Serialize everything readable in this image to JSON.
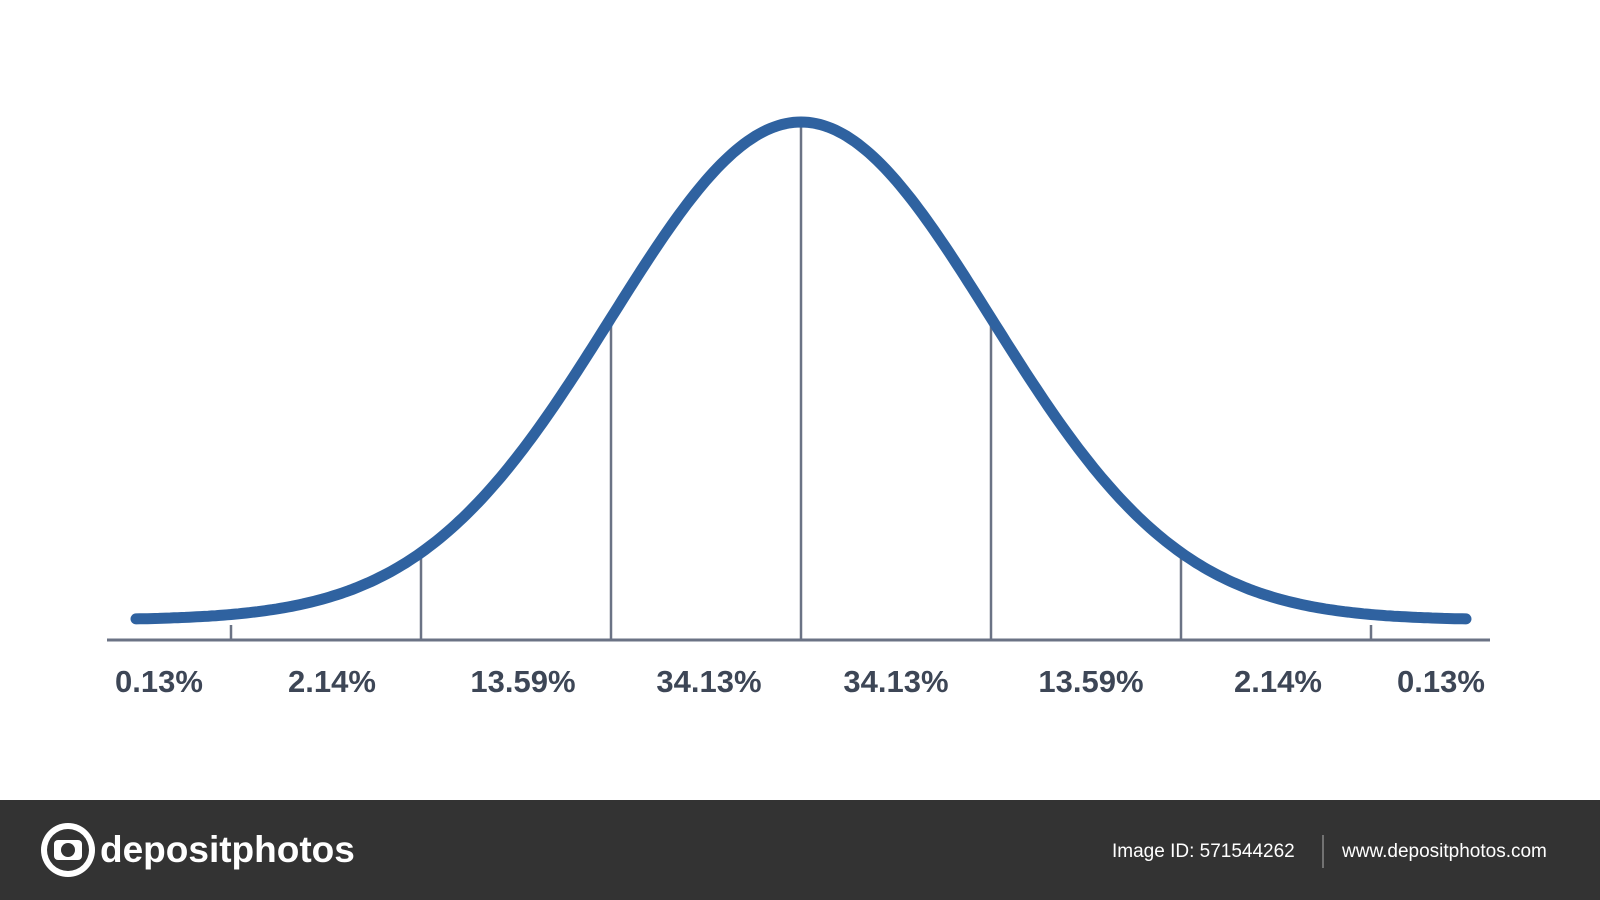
{
  "regions": [
    "0.13%",
    "2.14%",
    "13.59%",
    "34.13%",
    "34.13%",
    "13.59%",
    "2.14%",
    "0.13%"
  ],
  "footer": {
    "brand": "depositphotos",
    "image_id": "Image ID: 571544262",
    "site": "www.depositphotos.com"
  }
}
